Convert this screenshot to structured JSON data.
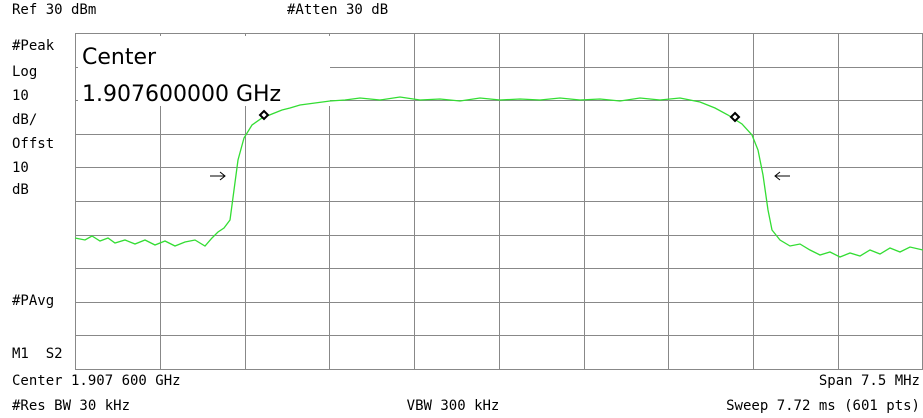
{
  "header": {
    "ref": "Ref 30 dBm",
    "atten": "#Atten 30 dB"
  },
  "left_panel": [
    "#Peak",
    "Log",
    "10",
    "dB/",
    "Offst",
    "10",
    "dB"
  ],
  "avg": "#PAvg",
  "markers": "M1  S2",
  "center_box": {
    "label": "Center",
    "value": "1.907600000 GHz"
  },
  "footer": {
    "center": "Center 1.907 600 GHz",
    "span": "Span 7.5 MHz",
    "rbw": "#Res BW 30 kHz",
    "vbw": "VBW 300 kHz",
    "sweep": "Sweep 7.72 ms (601 pts)"
  }
}
